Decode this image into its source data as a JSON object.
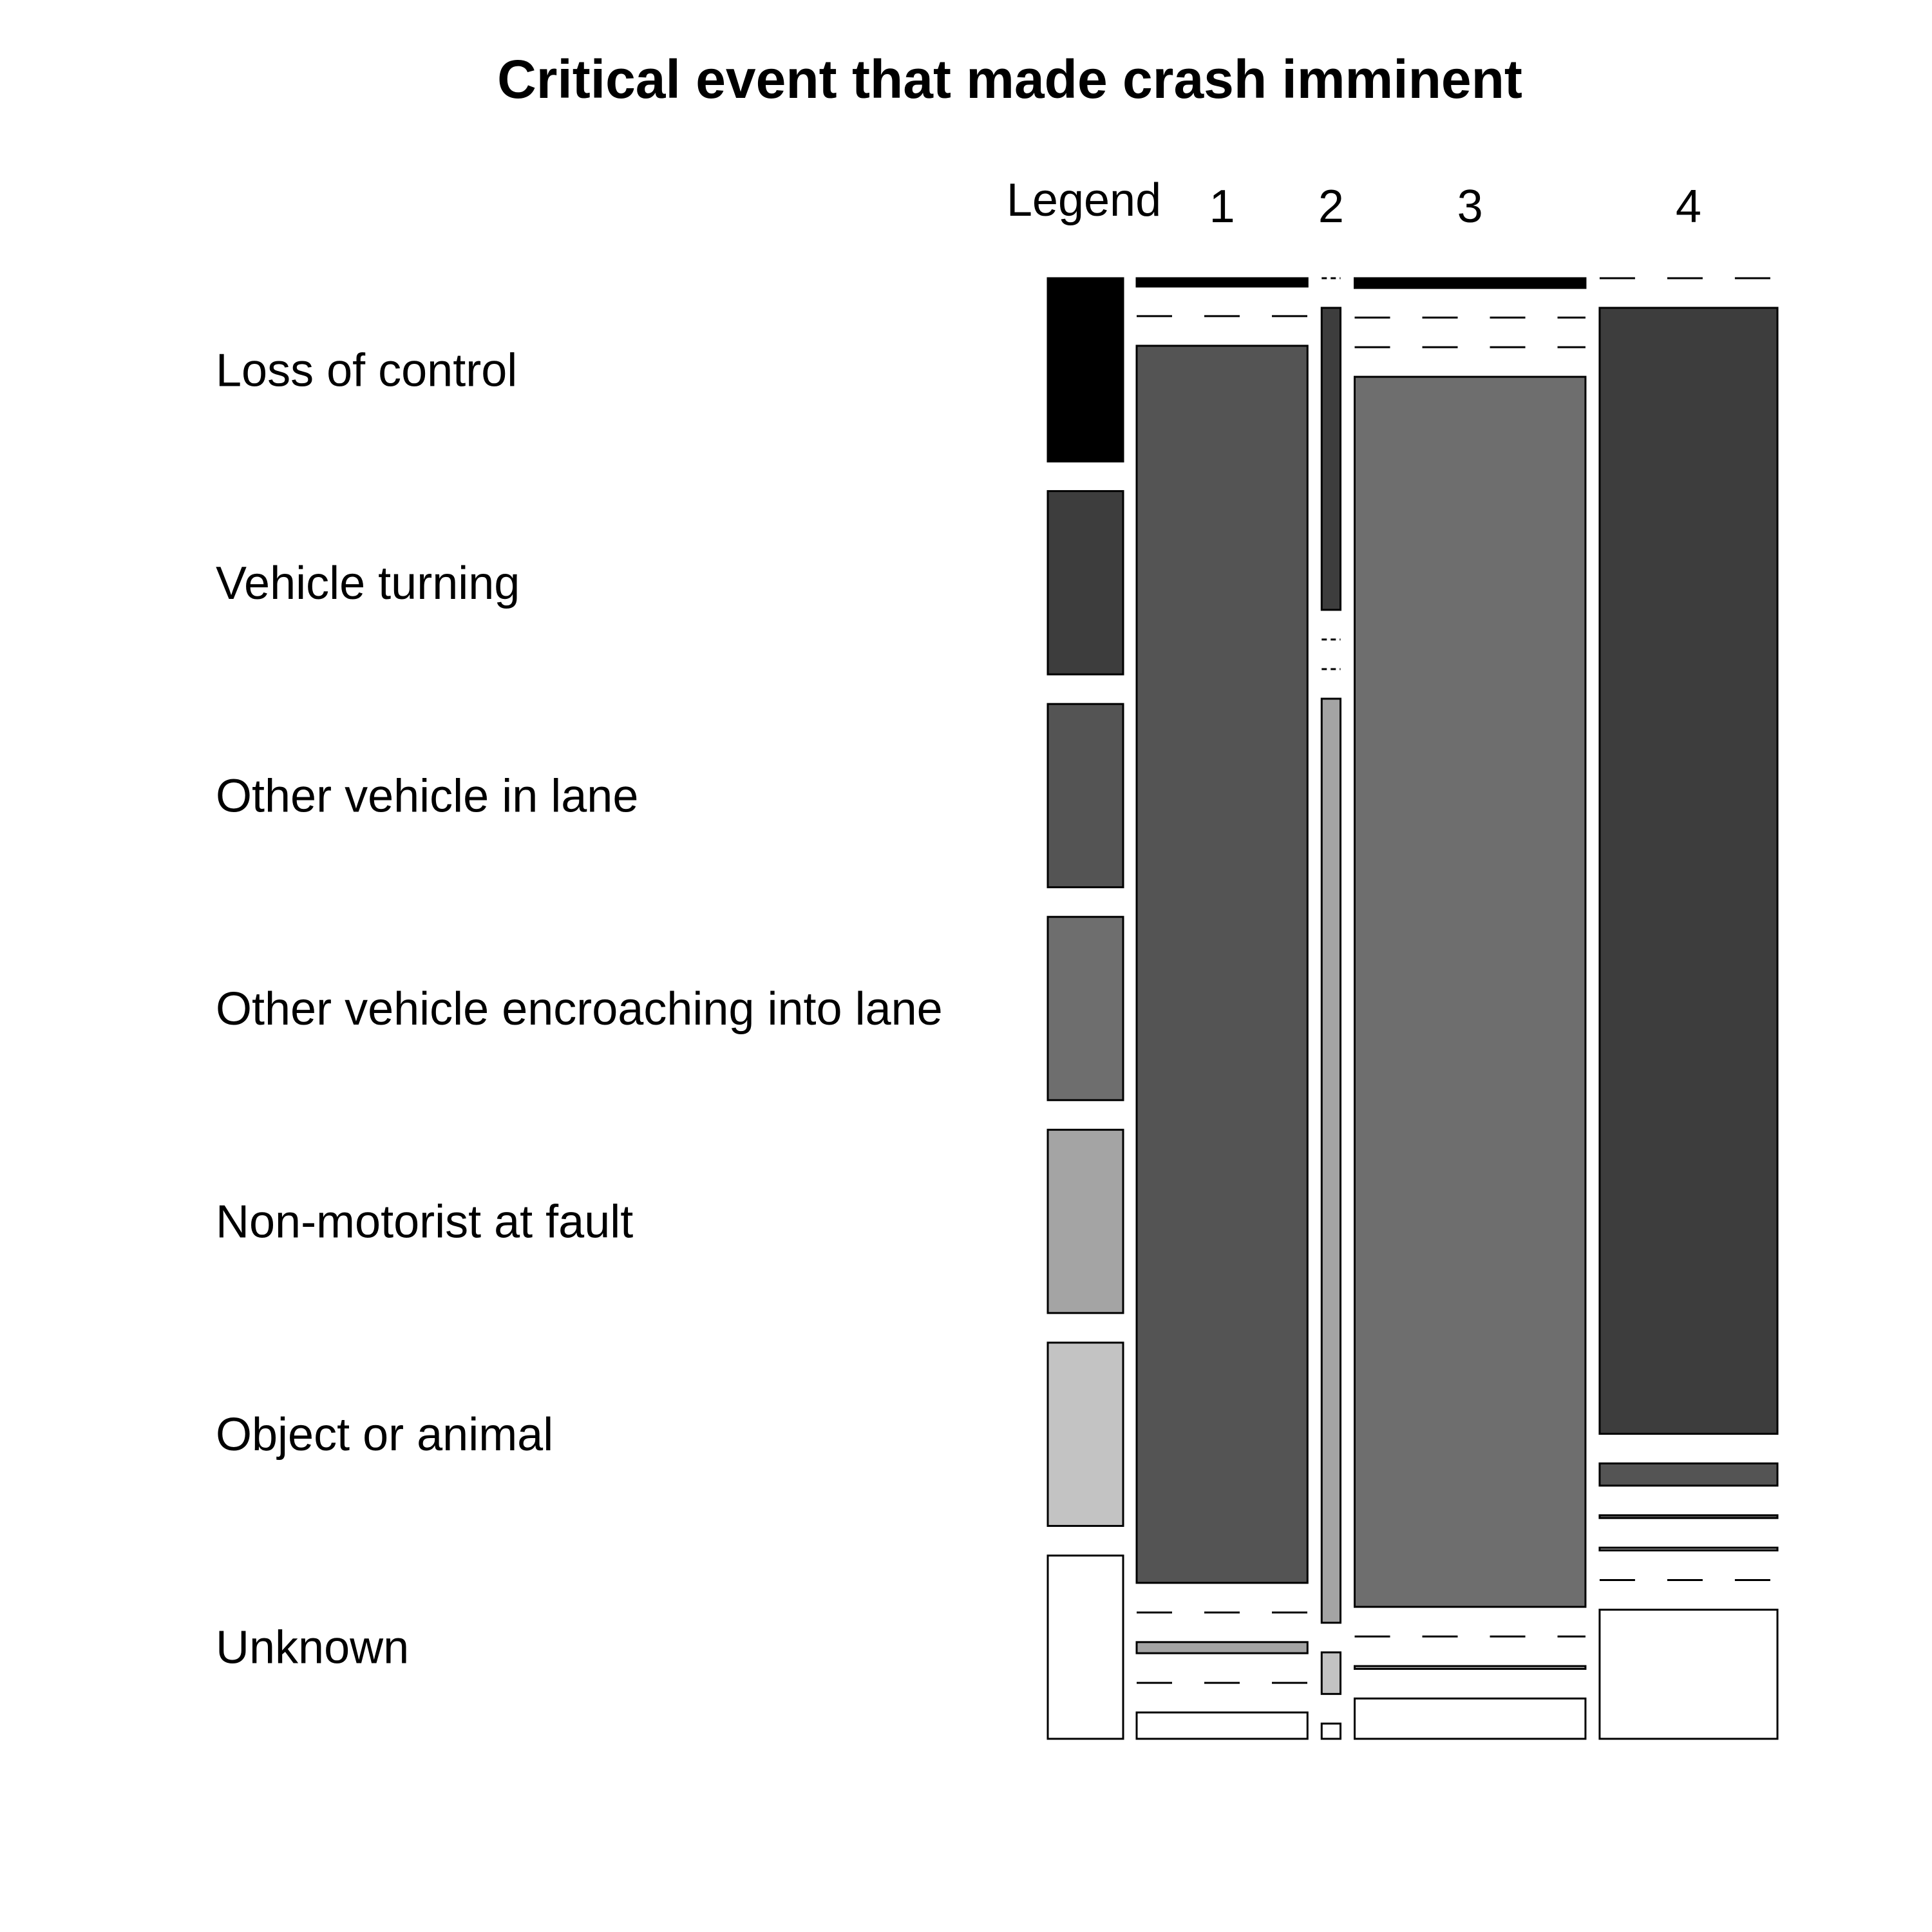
{
  "chart_data": {
    "type": "mosaic",
    "title": "Critical event that made crash imminent",
    "legend_header": "Legend",
    "categories": [
      {
        "label": "Loss of control",
        "color": "#000000"
      },
      {
        "label": "Vehicle turning",
        "color": "#3d3d3d"
      },
      {
        "label": "Other vehicle in lane",
        "color": "#545454"
      },
      {
        "label": "Other vehicle encroaching into lane",
        "color": "#6e6e6e"
      },
      {
        "label": "Non-motorist at fault",
        "color": "#a4a4a4"
      },
      {
        "label": "Object or animal",
        "color": "#c3c3c3"
      },
      {
        "label": "Unknown",
        "color": "#ffffff"
      }
    ],
    "columns": [
      {
        "label": "1",
        "width_share": 0.245,
        "proportions": [
          0.006,
          0.0,
          0.892,
          0.0,
          0.008,
          0.0,
          0.019
        ]
      },
      {
        "label": "2",
        "width_share": 0.027,
        "proportions": [
          0.0,
          0.218,
          0.0,
          0.0,
          0.667,
          0.03,
          0.011
        ]
      },
      {
        "label": "3",
        "width_share": 0.331,
        "proportions": [
          0.007,
          0.0,
          0.0,
          0.885,
          0.0,
          0.002,
          0.029
        ]
      },
      {
        "label": "4",
        "width_share": 0.255,
        "proportions": [
          0.0,
          0.811,
          0.016,
          0.002,
          0.002,
          0.0,
          0.093
        ]
      }
    ]
  }
}
